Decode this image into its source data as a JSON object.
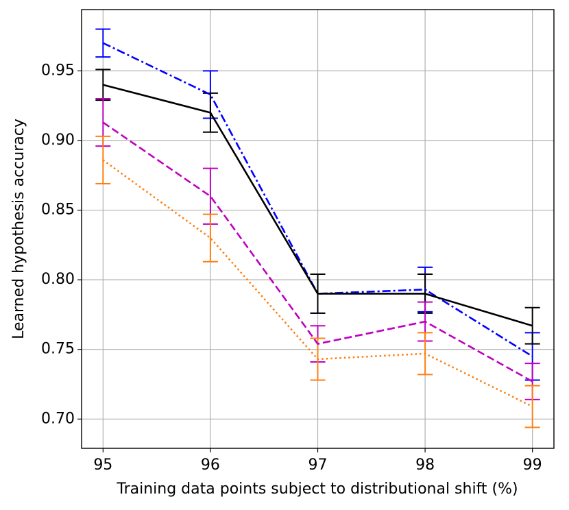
{
  "chart_data": {
    "type": "errorbar-line",
    "x_label": "Training data points subject to distributional shift (%)",
    "y_label": "Learned hypothesis accuracy",
    "x": [
      95,
      96,
      97,
      98,
      99
    ],
    "xlim": [
      94.8,
      99.2
    ],
    "xticks": [
      95,
      96,
      97,
      98,
      99
    ],
    "ylim": [
      0.679,
      0.994
    ],
    "yticks": [
      {
        "value": 0.7,
        "label": "0.70"
      },
      0.75,
      {
        "value": 0.8,
        "label": "0.80"
      },
      0.85,
      {
        "value": 0.9,
        "label": "0.90"
      },
      0.95
    ],
    "grid": true,
    "series": [
      {
        "color": "#0000ff",
        "linestyle": "dashdot",
        "values": [
          0.97,
          0.933,
          0.79,
          0.793,
          0.745
        ],
        "errors": [
          0.01,
          0.017,
          0.014,
          0.016,
          0.017
        ]
      },
      {
        "color": "#000000",
        "linestyle": "solid",
        "values": [
          0.94,
          0.92,
          0.79,
          0.79,
          0.767
        ],
        "errors": [
          0.011,
          0.014,
          0.014,
          0.014,
          0.013
        ]
      },
      {
        "color": "#bf00bf",
        "linestyle": "dashed",
        "values": [
          0.913,
          0.86,
          0.754,
          0.77,
          0.727
        ],
        "errors": [
          0.017,
          0.02,
          0.013,
          0.014,
          0.013
        ]
      },
      {
        "color": "#ff7f0e",
        "linestyle": "dotted",
        "values": [
          0.886,
          0.83,
          0.743,
          0.747,
          0.709
        ],
        "errors": [
          0.017,
          0.017,
          0.015,
          0.015,
          0.015
        ]
      }
    ]
  }
}
